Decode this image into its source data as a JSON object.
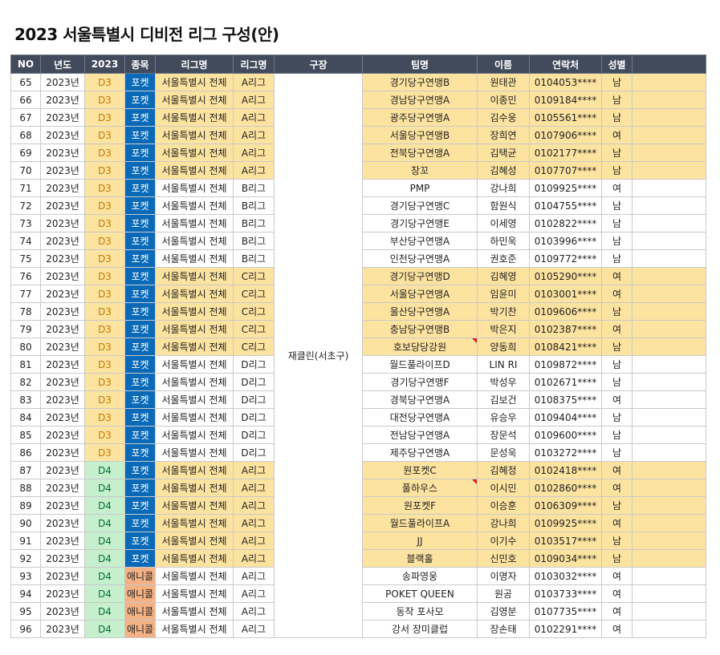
{
  "title": "2023 서울특별시 디비전 리그 구성(안)",
  "colors": {
    "header_bg": "#424b5c",
    "yellow": "#fde3a0",
    "d3_text": "#c07a00",
    "d4_bg": "#c6efce",
    "d4_text": "#00703c",
    "pocket_bg": "#0a6ab8",
    "anycall_bg": "#f4b183",
    "flag": "#d82020"
  },
  "headers": [
    "NO",
    "년도",
    "2023",
    "종목",
    "리그명",
    "리그명",
    "구장",
    "팀명",
    "이름",
    "연락처",
    "성별",
    ""
  ],
  "venue": "재클린(서초구)",
  "rows": [
    {
      "no": "65",
      "year": "2023년",
      "div": "D3",
      "sport": "포켓",
      "league": "서울특별시 전체",
      "sub": "A리그",
      "team": "경기당구연맹B",
      "name": "원태관",
      "tel": "0104053****",
      "sex": "남",
      "hl": true
    },
    {
      "no": "66",
      "year": "2023년",
      "div": "D3",
      "sport": "포켓",
      "league": "서울특별시 전체",
      "sub": "A리그",
      "team": "경남당구연맹A",
      "name": "이종민",
      "tel": "0109184****",
      "sex": "남",
      "hl": true
    },
    {
      "no": "67",
      "year": "2023년",
      "div": "D3",
      "sport": "포켓",
      "league": "서울특별시 전체",
      "sub": "A리그",
      "team": "광주당구연맹A",
      "name": "김수웅",
      "tel": "0105561****",
      "sex": "남",
      "hl": true
    },
    {
      "no": "68",
      "year": "2023년",
      "div": "D3",
      "sport": "포켓",
      "league": "서울특별시 전체",
      "sub": "A리그",
      "team": "서울당구연맹B",
      "name": "장희연",
      "tel": "0107906****",
      "sex": "여",
      "hl": true
    },
    {
      "no": "69",
      "year": "2023년",
      "div": "D3",
      "sport": "포켓",
      "league": "서울특별시 전체",
      "sub": "A리그",
      "team": "전북당구연맹A",
      "name": "김택균",
      "tel": "0102177****",
      "sex": "남",
      "hl": true
    },
    {
      "no": "70",
      "year": "2023년",
      "div": "D3",
      "sport": "포켓",
      "league": "서울특별시 전체",
      "sub": "A리그",
      "team": "창꼬",
      "name": "김혜성",
      "tel": "0107707****",
      "sex": "남",
      "hl": true
    },
    {
      "no": "71",
      "year": "2023년",
      "div": "D3",
      "sport": "포켓",
      "league": "서울특별시 전체",
      "sub": "B리그",
      "team": "PMP",
      "name": "강나희",
      "tel": "0109925****",
      "sex": "여",
      "hl": false
    },
    {
      "no": "72",
      "year": "2023년",
      "div": "D3",
      "sport": "포켓",
      "league": "서울특별시 전체",
      "sub": "B리그",
      "team": "경기당구연맹C",
      "name": "함원식",
      "tel": "0104755****",
      "sex": "남",
      "hl": false
    },
    {
      "no": "73",
      "year": "2023년",
      "div": "D3",
      "sport": "포켓",
      "league": "서울특별시 전체",
      "sub": "B리그",
      "team": "경기당구연맹E",
      "name": "이세영",
      "tel": "0102822****",
      "sex": "남",
      "hl": false
    },
    {
      "no": "74",
      "year": "2023년",
      "div": "D3",
      "sport": "포켓",
      "league": "서울특별시 전체",
      "sub": "B리그",
      "team": "부산당구연맹A",
      "name": "하민욱",
      "tel": "0103996****",
      "sex": "남",
      "hl": false
    },
    {
      "no": "75",
      "year": "2023년",
      "div": "D3",
      "sport": "포켓",
      "league": "서울특별시 전체",
      "sub": "B리그",
      "team": "인천당구연맹A",
      "name": "권호준",
      "tel": "0109772****",
      "sex": "남",
      "hl": false
    },
    {
      "no": "76",
      "year": "2023년",
      "div": "D3",
      "sport": "포켓",
      "league": "서울특별시 전체",
      "sub": "C리그",
      "team": "경기당구연맹D",
      "name": "김혜영",
      "tel": "0105290****",
      "sex": "여",
      "hl": true
    },
    {
      "no": "77",
      "year": "2023년",
      "div": "D3",
      "sport": "포켓",
      "league": "서울특별시 전체",
      "sub": "C리그",
      "team": "서울당구연맹A",
      "name": "임윤미",
      "tel": "0103001****",
      "sex": "여",
      "hl": true
    },
    {
      "no": "78",
      "year": "2023년",
      "div": "D3",
      "sport": "포켓",
      "league": "서울특별시 전체",
      "sub": "C리그",
      "team": "울산당구연맹A",
      "name": "박기찬",
      "tel": "0109606****",
      "sex": "남",
      "hl": true
    },
    {
      "no": "79",
      "year": "2023년",
      "div": "D3",
      "sport": "포켓",
      "league": "서울특별시 전체",
      "sub": "C리그",
      "team": "충남당구연맹B",
      "name": "박은지",
      "tel": "0102387****",
      "sex": "여",
      "hl": true
    },
    {
      "no": "80",
      "year": "2023년",
      "div": "D3",
      "sport": "포켓",
      "league": "서울특별시 전체",
      "sub": "C리그",
      "team": "호보당당강원",
      "name": "양동희",
      "tel": "0108421****",
      "sex": "남",
      "hl": true,
      "flag": true
    },
    {
      "no": "81",
      "year": "2023년",
      "div": "D3",
      "sport": "포켓",
      "league": "서울특별시 전체",
      "sub": "D리그",
      "team": "월드풀라이프D",
      "name": "LIN RI",
      "tel": "0109872****",
      "sex": "남",
      "hl": false
    },
    {
      "no": "82",
      "year": "2023년",
      "div": "D3",
      "sport": "포켓",
      "league": "서울특별시 전체",
      "sub": "D리그",
      "team": "경기당구연맹F",
      "name": "박성우",
      "tel": "0102671****",
      "sex": "남",
      "hl": false
    },
    {
      "no": "83",
      "year": "2023년",
      "div": "D3",
      "sport": "포켓",
      "league": "서울특별시 전체",
      "sub": "D리그",
      "team": "경북당구연맹A",
      "name": "김보건",
      "tel": "0108375****",
      "sex": "여",
      "hl": false
    },
    {
      "no": "84",
      "year": "2023년",
      "div": "D3",
      "sport": "포켓",
      "league": "서울특별시 전체",
      "sub": "D리그",
      "team": "대전당구연맹A",
      "name": "유승우",
      "tel": "0109404****",
      "sex": "남",
      "hl": false
    },
    {
      "no": "85",
      "year": "2023년",
      "div": "D3",
      "sport": "포켓",
      "league": "서울특별시 전체",
      "sub": "D리그",
      "team": "전남당구연맹A",
      "name": "장문석",
      "tel": "0109600****",
      "sex": "남",
      "hl": false
    },
    {
      "no": "86",
      "year": "2023년",
      "div": "D3",
      "sport": "포켓",
      "league": "서울특별시 전체",
      "sub": "D리그",
      "team": "제주당구연맹A",
      "name": "문성욱",
      "tel": "0103272****",
      "sex": "남",
      "hl": false
    },
    {
      "no": "87",
      "year": "2023년",
      "div": "D4",
      "sport": "포켓",
      "league": "서울특별시 전체",
      "sub": "A리그",
      "team": "원포켓C",
      "name": "김혜정",
      "tel": "0102418****",
      "sex": "여",
      "hl": true
    },
    {
      "no": "88",
      "year": "2023년",
      "div": "D4",
      "sport": "포켓",
      "league": "서울특별시 전체",
      "sub": "A리그",
      "team": "풀하우스",
      "name": "이시민",
      "tel": "0102860****",
      "sex": "여",
      "hl": true,
      "flag": true
    },
    {
      "no": "89",
      "year": "2023년",
      "div": "D4",
      "sport": "포켓",
      "league": "서울특별시 전체",
      "sub": "A리그",
      "team": "원포켓F",
      "name": "이승훈",
      "tel": "0106309****",
      "sex": "남",
      "hl": true
    },
    {
      "no": "90",
      "year": "2023년",
      "div": "D4",
      "sport": "포켓",
      "league": "서울특별시 전체",
      "sub": "A리그",
      "team": "월드풀라이프A",
      "name": "강나희",
      "tel": "0109925****",
      "sex": "여",
      "hl": true
    },
    {
      "no": "91",
      "year": "2023년",
      "div": "D4",
      "sport": "포켓",
      "league": "서울특별시 전체",
      "sub": "A리그",
      "team": "JJ",
      "name": "이기수",
      "tel": "0103517****",
      "sex": "남",
      "hl": true
    },
    {
      "no": "92",
      "year": "2023년",
      "div": "D4",
      "sport": "포켓",
      "league": "서울특별시 전체",
      "sub": "A리그",
      "team": "블랙홀",
      "name": "신민호",
      "tel": "0109034****",
      "sex": "남",
      "hl": true
    },
    {
      "no": "93",
      "year": "2023년",
      "div": "D4",
      "sport": "애니콜",
      "league": "서울특별시 전체",
      "sub": "A리그",
      "team": "송파영웅",
      "name": "이명자",
      "tel": "0103032****",
      "sex": "여",
      "hl": false
    },
    {
      "no": "94",
      "year": "2023년",
      "div": "D4",
      "sport": "애니콜",
      "league": "서울특별시 전체",
      "sub": "A리그",
      "team": "POKET QUEEN",
      "name": "원공",
      "tel": "0103733****",
      "sex": "여",
      "hl": false
    },
    {
      "no": "95",
      "year": "2023년",
      "div": "D4",
      "sport": "애니콜",
      "league": "서울특별시 전체",
      "sub": "A리그",
      "team": "동작 포사모",
      "name": "김영분",
      "tel": "0107735****",
      "sex": "여",
      "hl": false
    },
    {
      "no": "96",
      "year": "2023년",
      "div": "D4",
      "sport": "애니콜",
      "league": "서울특별시 전체",
      "sub": "A리그",
      "team": "강서 장미클럽",
      "name": "장손태",
      "tel": "0102291****",
      "sex": "여",
      "hl": false
    }
  ]
}
